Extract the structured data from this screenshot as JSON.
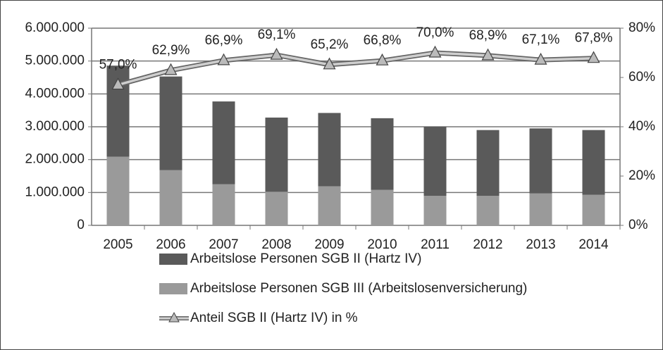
{
  "chart_data": {
    "type": "bar",
    "categories": [
      "2005",
      "2006",
      "2007",
      "2008",
      "2009",
      "2010",
      "2011",
      "2012",
      "2013",
      "2014"
    ],
    "series": [
      {
        "name": "Arbeitslose Personen SGB II (Hartz IV)",
        "type": "bar",
        "color": "#5a5a5a",
        "values": [
          2770000,
          2850000,
          2520000,
          2260000,
          2230000,
          2180000,
          2100000,
          2000000,
          1980000,
          1970000
        ]
      },
      {
        "name": "Arbeitslose Personen SGB III (Arbeitslosenversicherung)",
        "type": "bar",
        "color": "#9a9a9a",
        "values": [
          2090000,
          1680000,
          1250000,
          1020000,
          1190000,
          1080000,
          900000,
          900000,
          970000,
          930000
        ]
      },
      {
        "name": "Anteil SGB II (Hartz IV) in %",
        "type": "line",
        "axis": "y2",
        "color": "#8a8a8a",
        "values": [
          57.0,
          62.9,
          66.9,
          69.1,
          65.2,
          66.8,
          70.0,
          68.9,
          67.1,
          67.8
        ],
        "value_labels": [
          "57,0%",
          "62,9%",
          "66,9%",
          "69,1%",
          "65,2%",
          "66,8%",
          "70,0%",
          "68,9%",
          "67,1%",
          "67,8%"
        ]
      }
    ],
    "ylim": [
      0,
      6000000
    ],
    "yticks": [
      0,
      {
        "value": 1000000,
        "label": "1.000.000"
      },
      {
        "value": 2000000,
        "label": "2.000.000"
      },
      {
        "value": 3000000,
        "label": "3.000.000"
      },
      {
        "value": 4000000,
        "label": "4.000.000"
      },
      {
        "value": 5000000,
        "label": "5.000.000"
      },
      {
        "value": 6000000,
        "label": "6.000.000"
      }
    ],
    "y2lim": [
      0,
      80
    ],
    "y2ticks": [
      {
        "value": 0,
        "label": "0%"
      },
      {
        "value": 20,
        "label": "20%"
      },
      {
        "value": 40,
        "label": "40%"
      },
      {
        "value": 60,
        "label": "60%"
      },
      {
        "value": 80,
        "label": "80%"
      }
    ],
    "grid": true
  }
}
